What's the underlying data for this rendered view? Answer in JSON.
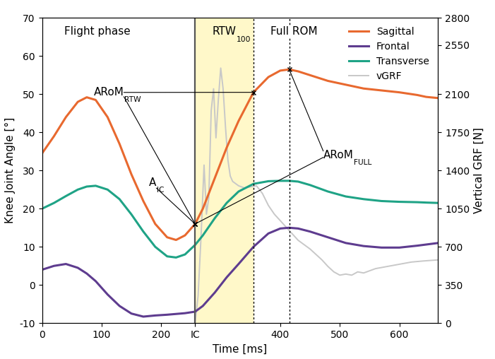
{
  "chart_data": {
    "type": "line",
    "x_label": "Time [ms]",
    "y_label": "Knee Joint Angle [°]",
    "y2_label": "Vertical GRF [N]",
    "x": [
      0,
      20,
      40,
      60,
      75,
      90,
      110,
      130,
      150,
      170,
      190,
      210,
      225,
      240,
      257,
      270,
      290,
      310,
      330,
      355,
      380,
      400,
      415,
      430,
      450,
      480,
      510,
      540,
      570,
      600,
      630,
      645,
      665
    ],
    "xlim": [
      0,
      665
    ],
    "xticks": [
      0,
      100,
      200,
      {
        "value": 257,
        "label": "IC"
      },
      400,
      500,
      600
    ],
    "ylim": [
      -10,
      70
    ],
    "yticks": [
      -10,
      0,
      10,
      20,
      30,
      40,
      50,
      60,
      70
    ],
    "y2lim": [
      0,
      2800
    ],
    "y2ticks": [
      0,
      350,
      700,
      1050,
      1400,
      1750,
      2100,
      2550,
      2800
    ],
    "legend": "upper right",
    "series": [
      {
        "name": "Sagittal",
        "color": "#E8692F",
        "values": [
          34.5,
          39,
          44,
          48,
          49.2,
          48.5,
          44,
          37,
          29,
          22,
          16,
          12.5,
          11.8,
          13,
          16,
          20,
          28,
          36,
          43,
          50.5,
          54.5,
          56.2,
          56.5,
          56,
          55,
          53.5,
          52.5,
          51.5,
          51,
          50.5,
          49.8,
          49.3,
          49
        ]
      },
      {
        "name": "Frontal",
        "color": "#5E3C8F",
        "values": [
          4,
          5,
          5.5,
          4.5,
          3,
          1,
          -2.5,
          -5.5,
          -7.5,
          -8.3,
          -8,
          -7.8,
          -7.6,
          -7.4,
          -7,
          -5.5,
          -2,
          2,
          5.5,
          10,
          13.5,
          14.8,
          15,
          14.8,
          14,
          12.5,
          11,
          10.2,
          9.8,
          9.8,
          10.3,
          10.6,
          11
        ]
      },
      {
        "name": "Transverse",
        "color": "#1FA386",
        "values": [
          20,
          21.5,
          23.3,
          25,
          25.8,
          26,
          25,
          22.5,
          18.5,
          14,
          10,
          7.5,
          7.2,
          8,
          10.5,
          13,
          17.5,
          21.5,
          24.5,
          26.5,
          27.2,
          27.3,
          27.3,
          27.1,
          26.2,
          24.5,
          23.2,
          22.5,
          22,
          21.8,
          21.7,
          21.6,
          21.5
        ]
      },
      {
        "name": "vGRF",
        "color": "#C8C8C8",
        "axis": "y2",
        "x": [
          257,
          262,
          267,
          272,
          276,
          280,
          284,
          288,
          292,
          296,
          300,
          304,
          308,
          312,
          316,
          320,
          325,
          330,
          340,
          350,
          360,
          370,
          380,
          390,
          400,
          410,
          420,
          430,
          440,
          450,
          460,
          470,
          480,
          490,
          500,
          510,
          520,
          530,
          540,
          550,
          560,
          580,
          600,
          620,
          640,
          665
        ],
        "values": [
          0,
          250,
          800,
          1450,
          1000,
          1150,
          1950,
          2150,
          1700,
          2050,
          2340,
          2150,
          1800,
          1500,
          1350,
          1300,
          1280,
          1260,
          1240,
          1250,
          1260,
          1190,
          1080,
          1000,
          940,
          880,
          820,
          760,
          720,
          680,
          630,
          580,
          520,
          470,
          440,
          450,
          440,
          470,
          460,
          480,
          500,
          520,
          540,
          560,
          570,
          580
        ]
      }
    ],
    "regions": {
      "flight_phase": {
        "text": "Flight phase"
      },
      "rtw": {
        "text": "RTW",
        "sub": "100",
        "start": 257,
        "end": 355
      },
      "full_rom": {
        "text": "Full ROM",
        "at": 415
      }
    },
    "annotations": [
      {
        "text": "A",
        "sub": "IC",
        "on": "Sagittal",
        "points_to": [
          257
        ]
      },
      {
        "text": "ARoM",
        "sub": "RTW",
        "on": "Sagittal",
        "points_to": [
          257,
          355
        ]
      },
      {
        "text": "ARoM",
        "sub": "FULL",
        "on": "Sagittal",
        "points_to": [
          415,
          257
        ]
      }
    ]
  }
}
